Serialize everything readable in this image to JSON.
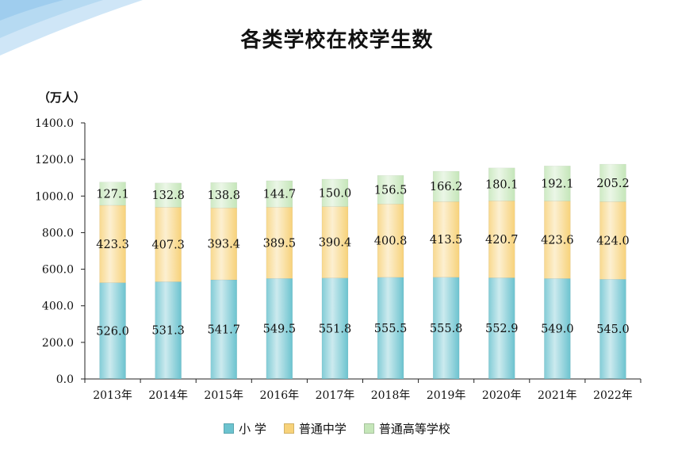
{
  "chart_data": {
    "type": "bar",
    "stacked": true,
    "title": "各类学校在校学生数",
    "ylabel": "（万人）",
    "xlabel": "",
    "categories": [
      "2013年",
      "2014年",
      "2015年",
      "2016年",
      "2017年",
      "2018年",
      "2019年",
      "2020年",
      "2021年",
      "2022年"
    ],
    "ylim": [
      0,
      1400
    ],
    "yticks": [
      "0.0",
      "200.0",
      "400.0",
      "600.0",
      "800.0",
      "1000.0",
      "1200.0",
      "1400.0"
    ],
    "grid": false,
    "legend_position": "bottom",
    "series": [
      {
        "name": "小 学",
        "color": "#6cc3cf",
        "labels": [
          "526.0",
          "531.3",
          "541.7",
          "549.5",
          "551.8",
          "555.5",
          "555.8",
          "552.9",
          "549.0",
          "545.0"
        ],
        "values": [
          526.0,
          531.3,
          541.7,
          549.5,
          551.8,
          555.5,
          555.8,
          552.9,
          549.0,
          545.0
        ]
      },
      {
        "name": "普通中学",
        "color": "#f7d27a",
        "labels": [
          "423.3",
          "407.3",
          "393.4",
          "389.5",
          "390.4",
          "400.8",
          "413.5",
          "420.7",
          "423.6",
          "424.0"
        ],
        "values": [
          423.3,
          407.3,
          393.4,
          389.5,
          390.4,
          400.8,
          413.5,
          420.7,
          423.6,
          424.0
        ]
      },
      {
        "name": "普通高等学校",
        "color": "#c5e6b9",
        "labels": [
          "127.1",
          "132.8",
          "138.8",
          "144.7",
          "150.0",
          "156.5",
          "166.2",
          "180.1",
          "192.1",
          "205.2"
        ],
        "values": [
          127.1,
          132.8,
          138.8,
          144.7,
          150.0,
          156.5,
          166.2,
          180.1,
          192.1,
          205.2
        ]
      }
    ]
  }
}
